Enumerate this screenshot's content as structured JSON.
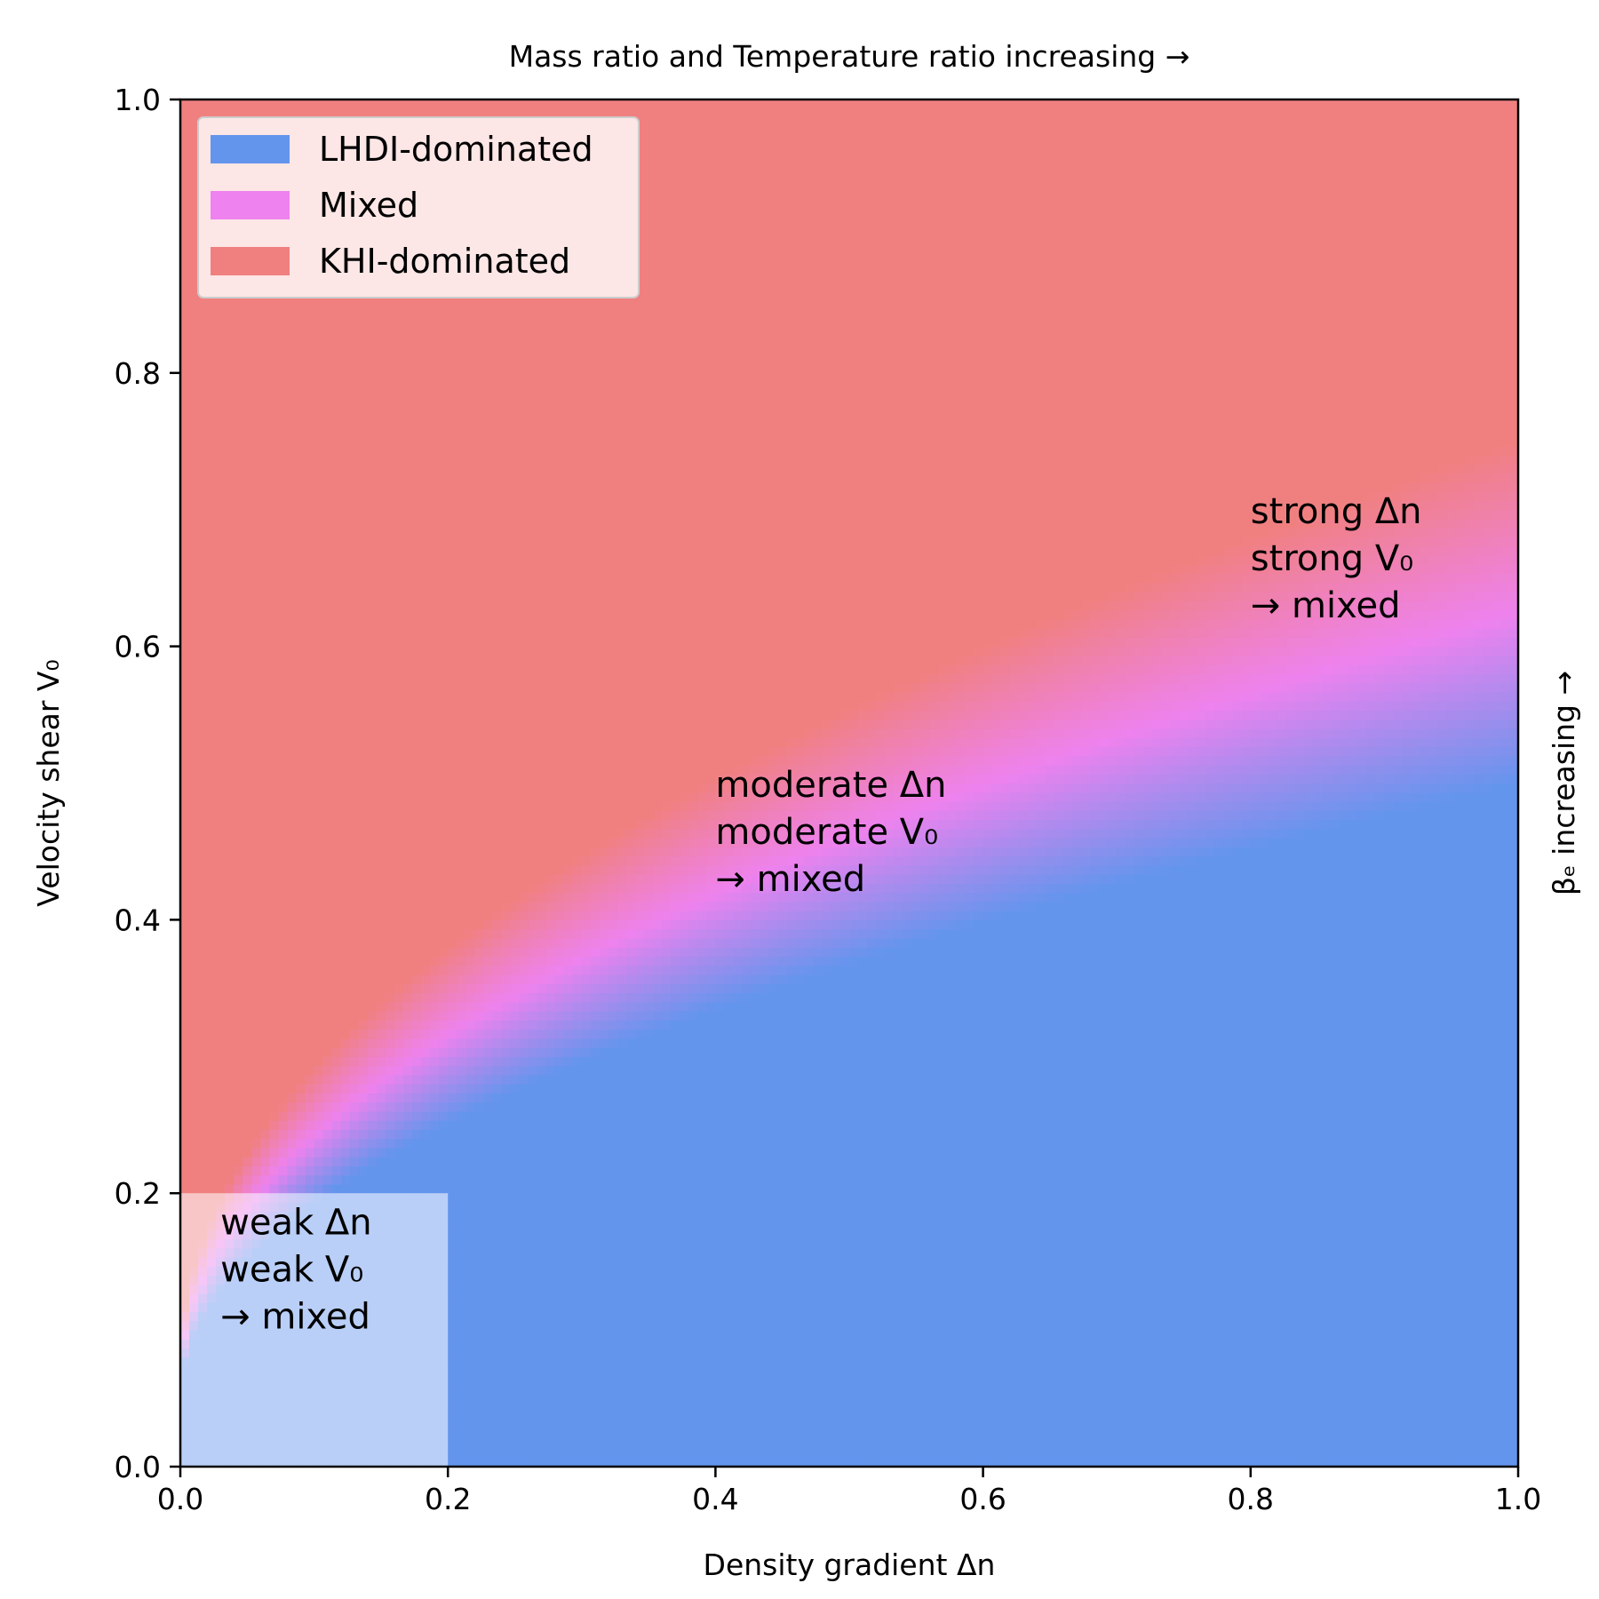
{
  "chart_data": {
    "type": "heatmap",
    "title": "Mass ratio and Temperature ratio increasing →",
    "xlabel": "Density gradient Δn",
    "ylabel": "Velocity shear V₀",
    "right_label": "βₑ increasing →",
    "xlim": [
      0.0,
      1.0
    ],
    "ylim": [
      0.0,
      1.0
    ],
    "xticks": [
      "0.0",
      "0.2",
      "0.4",
      "0.6",
      "0.8",
      "1.0"
    ],
    "yticks": [
      "0.0",
      "0.2",
      "0.4",
      "0.6",
      "0.8",
      "1.0"
    ],
    "grid": false,
    "legend_position": "top-left",
    "legend": [
      {
        "label": "LHDI-dominated",
        "color": "#6495ed"
      },
      {
        "label": "Mixed",
        "color": "#ee82ee"
      },
      {
        "label": "KHI-dominated",
        "color": "#f08080"
      }
    ],
    "highlight_region": {
      "x": [
        0.0,
        0.2
      ],
      "y": [
        0.0,
        0.2
      ],
      "color": "#ffffff",
      "opacity": 0.55
    },
    "annotations": [
      {
        "x": 0.03,
        "y": 0.17,
        "lines": [
          "weak Δn",
          "weak V₀",
          "→ mixed"
        ]
      },
      {
        "x": 0.4,
        "y": 0.49,
        "lines": [
          "moderate Δn",
          "moderate V₀",
          "→ mixed"
        ]
      },
      {
        "x": 0.8,
        "y": 0.69,
        "lines": [
          "strong Δn",
          "strong V₀",
          "→ mixed"
        ]
      }
    ]
  }
}
